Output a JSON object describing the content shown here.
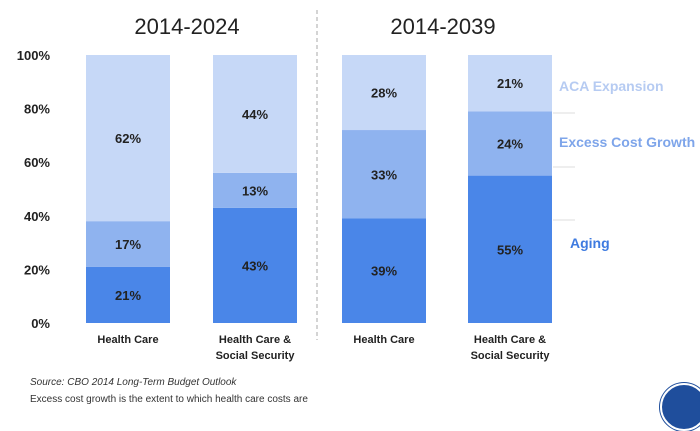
{
  "chart_data": [
    {
      "type": "bar",
      "stacked": true,
      "title": "2014-2024",
      "categories": [
        "Health Care",
        "Health Care & Social Security"
      ],
      "series": [
        {
          "name": "Aging",
          "values": [
            21,
            43
          ]
        },
        {
          "name": "Excess Cost Growth",
          "values": [
            17,
            13
          ]
        },
        {
          "name": "ACA Expansion",
          "values": [
            62,
            44
          ]
        }
      ],
      "ylim": [
        0,
        100
      ],
      "yticks": [
        "0%",
        "20%",
        "40%",
        "60%",
        "80%",
        "100%"
      ]
    },
    {
      "type": "bar",
      "stacked": true,
      "title": "2014-2039",
      "categories": [
        "Health Care",
        "Health Care & Social Security"
      ],
      "series": [
        {
          "name": "Aging",
          "values": [
            39,
            55
          ]
        },
        {
          "name": "Excess Cost Growth",
          "values": [
            33,
            24
          ]
        },
        {
          "name": "ACA Expansion",
          "values": [
            28,
            21
          ]
        }
      ],
      "ylim": [
        0,
        100
      ]
    }
  ],
  "colors": {
    "Aging": "#4a86e8",
    "Excess Cost Growth": "#8fb3ef",
    "ACA Expansion": "#c6d8f7"
  },
  "footer": {
    "source": "Source: CBO 2014 Long-Term Budget Outlook",
    "note": "Excess cost growth is the extent to which health care costs are"
  }
}
